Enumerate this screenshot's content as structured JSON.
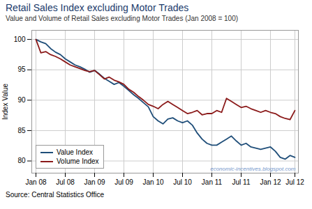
{
  "chart_data": {
    "type": "line",
    "title": "Retail Sales Index excluding Motor Trades",
    "subtitle": "Value and Volume of Retail Sales excluding Motor Trades (Jan 2008 = 100)",
    "ylabel": "Index Value",
    "source": "Source: Central Statistics Office",
    "annotations": [
      "economic-incentives.blogspot.com"
    ],
    "categories": [
      "Jan 08",
      null,
      null,
      null,
      null,
      null,
      "Jul 08",
      null,
      null,
      null,
      null,
      null,
      "Jan 09",
      null,
      null,
      null,
      null,
      null,
      "Jul 09",
      null,
      null,
      null,
      null,
      null,
      "Jan 10",
      null,
      null,
      null,
      null,
      null,
      "Jul 10",
      null,
      null,
      null,
      null,
      null,
      "Jan 11",
      null,
      null,
      null,
      null,
      null,
      "Jul 11",
      null,
      null,
      null,
      null,
      null,
      "Jan 12",
      null,
      null,
      null,
      null,
      "Jul 12"
    ],
    "series": [
      {
        "name": "Value Index",
        "color": "#1f4e79",
        "values": [
          100.0,
          99.6,
          99.3,
          98.5,
          97.9,
          97.5,
          96.8,
          96.3,
          95.8,
          95.5,
          95.1,
          94.6,
          94.9,
          94.3,
          93.6,
          93.1,
          92.6,
          92.9,
          92.3,
          91.6,
          90.9,
          90.3,
          89.6,
          88.9,
          87.3,
          86.6,
          86.1,
          86.9,
          87.1,
          86.6,
          86.3,
          86.6,
          85.9,
          84.6,
          83.6,
          82.9,
          82.6,
          82.6,
          83.1,
          83.6,
          84.1,
          83.3,
          82.6,
          82.9,
          82.3,
          82.1,
          81.9,
          82.1,
          82.3,
          81.6,
          80.6,
          80.3,
          80.9,
          80.6
        ]
      },
      {
        "name": "Volume Index",
        "color": "#8b1a1a",
        "values": [
          100.0,
          97.8,
          98.0,
          97.5,
          97.2,
          96.8,
          96.3,
          95.8,
          95.5,
          95.2,
          94.9,
          94.7,
          94.9,
          94.2,
          93.5,
          93.8,
          93.3,
          93.0,
          92.6,
          91.8,
          91.3,
          90.6,
          90.0,
          89.3,
          89.0,
          88.6,
          89.3,
          89.8,
          89.3,
          88.8,
          88.3,
          87.8,
          88.0,
          88.3,
          87.6,
          87.8,
          87.8,
          88.3,
          88.0,
          90.3,
          89.8,
          89.3,
          88.8,
          89.0,
          88.6,
          88.3,
          88.0,
          88.3,
          88.0,
          87.8,
          87.3,
          87.0,
          86.8,
          88.3
        ]
      }
    ],
    "ylim": [
      78,
      101.5
    ],
    "yticks": [
      80,
      85,
      90,
      95,
      100
    ],
    "grid": true,
    "legend": "lower left"
  }
}
